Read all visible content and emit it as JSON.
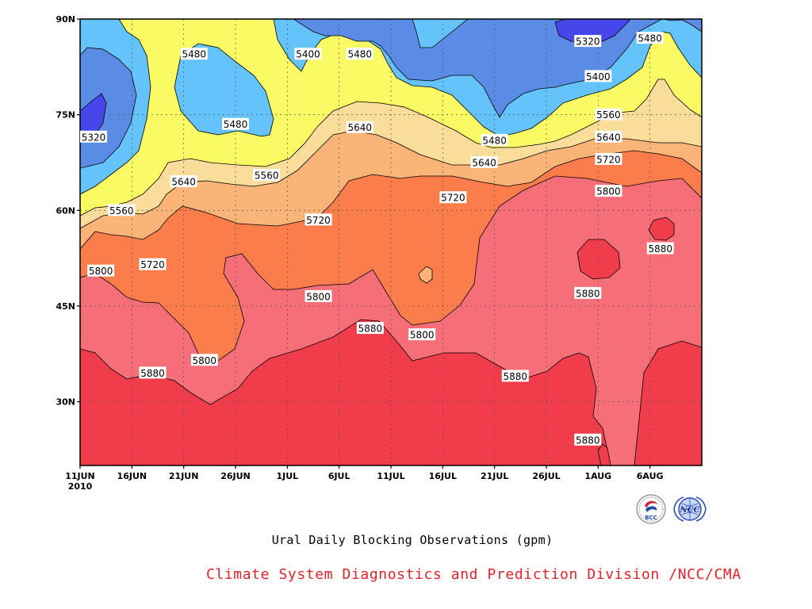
{
  "chart_data": {
    "type": "heatmap",
    "subtype": "filled contour (time-latitude Hovmoller)",
    "title": "Ural Daily Blocking Observations (gpm)",
    "x_ticks": [
      "11JUN",
      "16JUN",
      "21JUN",
      "26JUN",
      "1JUL",
      "6JUL",
      "11JUL",
      "16JUL",
      "21JUL",
      "26JUL",
      "1AUG",
      "6AUG"
    ],
    "x_year_label": "2010",
    "y_ticks": [
      "90N",
      "75N",
      "60N",
      "45N",
      "30N"
    ],
    "x_range": [
      "2010-06-11",
      "2010-08-10"
    ],
    "y_range_deg": [
      20,
      90
    ],
    "contour_levels": [
      5320,
      5400,
      5480,
      5560,
      5640,
      5720,
      5800,
      5880
    ],
    "level_colors": {
      "below_5320": "#4646eb",
      "5320_5400": "#5a8ce6",
      "5400_5480": "#64c3fa",
      "5480_5560": "#fafa64",
      "5560_5640": "#fadc9b",
      "5640_5720": "#fab478",
      "5720_5800": "#fa7d4b",
      "5800_5880": "#f56e78",
      "above_5880": "#f03c4b"
    },
    "contour_labels": [
      {
        "value": "5480",
        "date": "2010-06-22",
        "lat": 84.5
      },
      {
        "value": "5400",
        "date": "2010-07-03",
        "lat": 84.5
      },
      {
        "value": "5480",
        "date": "2010-07-08",
        "lat": 84.5
      },
      {
        "value": "5320",
        "date": "2010-07-30",
        "lat": 86.5
      },
      {
        "value": "5480",
        "date": "2010-08-05",
        "lat": 87.0
      },
      {
        "value": "5400",
        "date": "2010-07-31",
        "lat": 81.0
      },
      {
        "value": "5320",
        "date": "2010-06-11",
        "lat": 71.5
      },
      {
        "value": "5480",
        "date": "2010-06-26",
        "lat": 73.5
      },
      {
        "value": "5640",
        "date": "2010-07-08",
        "lat": 73.0
      },
      {
        "value": "5560",
        "date": "2010-08-01",
        "lat": 75.0
      },
      {
        "value": "5480",
        "date": "2010-07-21",
        "lat": 71.0
      },
      {
        "value": "5640",
        "date": "2010-08-01",
        "lat": 71.5
      },
      {
        "value": "5640",
        "date": "2010-07-20",
        "lat": 67.5
      },
      {
        "value": "5720",
        "date": "2010-08-01",
        "lat": 68.0
      },
      {
        "value": "5560",
        "date": "2010-06-29",
        "lat": 65.5
      },
      {
        "value": "5640",
        "date": "2010-06-21",
        "lat": 64.5
      },
      {
        "value": "5800",
        "date": "2010-08-01",
        "lat": 63.0
      },
      {
        "value": "5720",
        "date": "2010-07-17",
        "lat": 62.0
      },
      {
        "value": "5560",
        "date": "2010-06-15",
        "lat": 60.0
      },
      {
        "value": "5720",
        "date": "2010-07-04",
        "lat": 58.5
      },
      {
        "value": "5880",
        "date": "2010-08-06",
        "lat": 54.0
      },
      {
        "value": "5720",
        "date": "2010-06-18",
        "lat": 51.5
      },
      {
        "value": "5800",
        "date": "2010-06-13",
        "lat": 50.5
      },
      {
        "value": "5880",
        "date": "2010-07-30",
        "lat": 47.0
      },
      {
        "value": "5800",
        "date": "2010-07-04",
        "lat": 46.5
      },
      {
        "value": "5880",
        "date": "2010-07-09",
        "lat": 41.5
      },
      {
        "value": "5800",
        "date": "2010-07-14",
        "lat": 40.5
      },
      {
        "value": "5800",
        "date": "2010-06-23",
        "lat": 36.5
      },
      {
        "value": "5880",
        "date": "2010-06-18",
        "lat": 34.5
      },
      {
        "value": "5880",
        "date": "2010-07-23",
        "lat": 34.0
      },
      {
        "value": "5880",
        "date": "2010-07-30",
        "lat": 24.0
      }
    ]
  },
  "caption": {
    "title": "Ural Daily Blocking Observations (gpm)",
    "credit": "Climate System Diagnostics and Prediction Division /NCC/CMA"
  },
  "logos": {
    "bcc": {
      "text": "BCC",
      "icon": "bcc-logo-icon"
    },
    "ncc": {
      "text": "NCC",
      "icon": "ncc-logo-icon"
    }
  }
}
